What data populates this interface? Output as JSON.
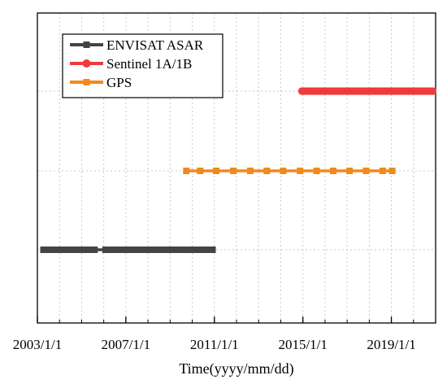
{
  "chart_data": {
    "type": "scatter",
    "title": "",
    "xlabel": "Time(yyyy/mm/dd)",
    "ylabel": "",
    "xlim": [
      "2003/1/1",
      "2021/1/1"
    ],
    "x_ticks": [
      "2003/1/1",
      "2007/1/1",
      "2011/1/1",
      "2015/1/1",
      "2019/1/1"
    ],
    "grid": true,
    "legend_position": "top-left",
    "series": [
      {
        "name": "ENVISAT ASAR",
        "color": "#444444",
        "marker": "square",
        "row": 1,
        "dates": [
          "2003-04-10",
          "2003-06-01",
          "2003-08-05",
          "2003-09-15",
          "2003-11-01",
          "2003-12-20",
          "2004-02-10",
          "2004-04-01",
          "2004-05-20",
          "2004-07-10",
          "2004-09-01",
          "2004-10-20",
          "2004-12-10",
          "2005-02-01",
          "2005-03-25",
          "2005-06-01",
          "2005-08-01",
          "2006-02-01",
          "2006-03-20",
          "2006-05-10",
          "2006-07-01",
          "2006-08-20",
          "2006-10-10",
          "2006-12-01",
          "2007-01-20",
          "2007-03-10",
          "2007-05-01",
          "2007-06-20",
          "2007-08-10",
          "2007-10-01",
          "2007-11-20",
          "2008-01-10",
          "2008-03-01",
          "2008-04-20",
          "2008-06-10",
          "2008-08-01",
          "2008-09-20",
          "2008-11-10",
          "2009-01-01",
          "2009-02-20",
          "2009-04-10",
          "2009-06-01",
          "2009-07-20",
          "2009-09-10",
          "2009-11-01",
          "2009-12-20",
          "2010-02-10",
          "2010-04-01",
          "2010-05-20",
          "2010-07-10",
          "2010-09-01",
          "2010-10-20",
          "2010-12-01"
        ]
      },
      {
        "name": "GPS",
        "color": "#f08a1c",
        "marker": "square",
        "row": 2,
        "dates": [
          "2009-09-25",
          "2010-05-10",
          "2011-02-01",
          "2011-11-10",
          "2012-08-15",
          "2013-05-15",
          "2014-02-10",
          "2014-11-15",
          "2015-08-15",
          "2016-05-15",
          "2017-02-10",
          "2017-11-10",
          "2018-08-10",
          "2019-01-15"
        ]
      },
      {
        "name": "Sentinel 1A/1B",
        "color": "#ee3b3b",
        "marker": "circle",
        "row": 3,
        "dates": [
          "2014-12-15",
          "2015-01-15",
          "2015-02-15",
          "2015-03-15",
          "2015-04-15",
          "2015-05-15",
          "2015-06-15",
          "2015-07-15",
          "2015-08-15",
          "2015-09-15",
          "2015-10-15",
          "2015-11-15",
          "2015-12-15",
          "2016-01-15",
          "2016-02-15",
          "2016-03-15",
          "2016-04-15",
          "2016-05-15",
          "2016-06-15",
          "2016-07-15",
          "2016-08-15",
          "2016-09-15",
          "2016-10-15",
          "2016-11-15",
          "2016-12-15",
          "2017-01-15",
          "2017-02-15",
          "2017-03-15",
          "2017-04-15",
          "2017-05-15",
          "2017-06-15",
          "2017-07-15",
          "2017-08-15",
          "2017-09-15",
          "2017-10-15",
          "2017-11-15",
          "2017-12-15",
          "2018-01-15",
          "2018-02-15",
          "2018-03-15",
          "2018-04-15",
          "2018-05-15",
          "2018-06-15",
          "2018-07-15",
          "2018-08-15",
          "2018-09-15",
          "2018-10-15",
          "2018-11-15",
          "2018-12-15",
          "2019-01-15",
          "2019-02-15",
          "2019-03-15",
          "2019-04-15",
          "2019-05-15",
          "2019-06-15",
          "2019-07-15",
          "2019-08-15",
          "2019-09-15",
          "2019-10-15",
          "2019-11-15",
          "2019-12-15",
          "2020-01-15",
          "2020-02-15",
          "2020-03-15",
          "2020-04-15",
          "2020-05-15",
          "2020-06-15",
          "2020-07-15",
          "2020-08-15",
          "2020-09-15",
          "2020-10-15",
          "2020-11-15"
        ]
      }
    ]
  },
  "legend": {
    "items": [
      {
        "label": "ENVISAT ASAR",
        "color": "#444444",
        "marker": "square"
      },
      {
        "label": "Sentinel 1A/1B",
        "color": "#ee3b3b",
        "marker": "circle"
      },
      {
        "label": "GPS",
        "color": "#f08a1c",
        "marker": "square"
      }
    ]
  }
}
